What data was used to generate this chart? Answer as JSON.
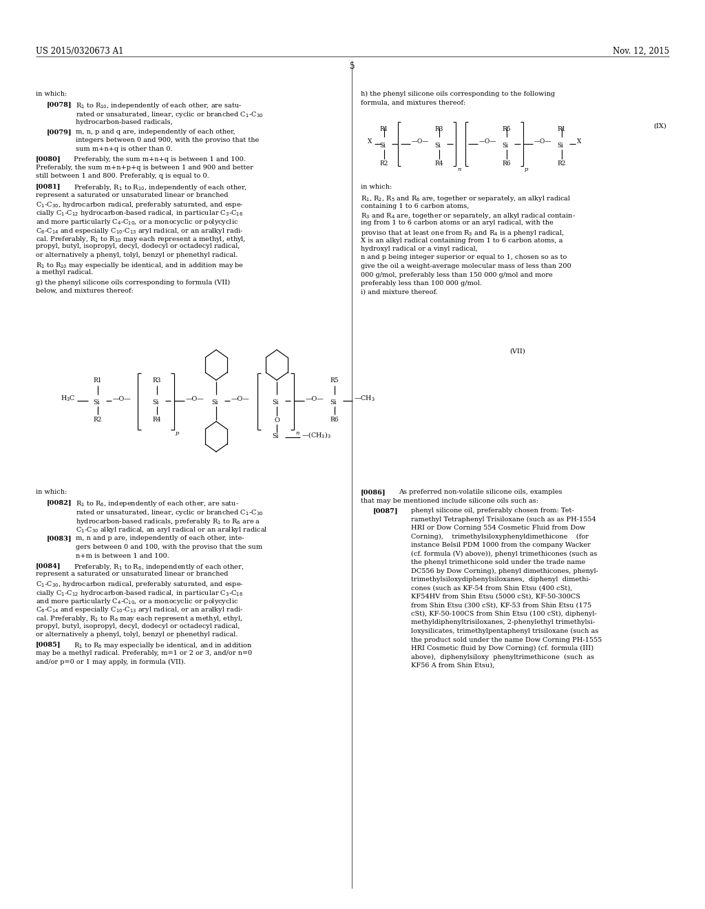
{
  "bg_color": "#ffffff",
  "header_left": "US 2015/0320673 A1",
  "header_right": "Nov. 12, 2015",
  "page_number": "5",
  "body_text_size": 7.0,
  "small_text_size": 6.5,
  "chem_text_size": 6.8
}
